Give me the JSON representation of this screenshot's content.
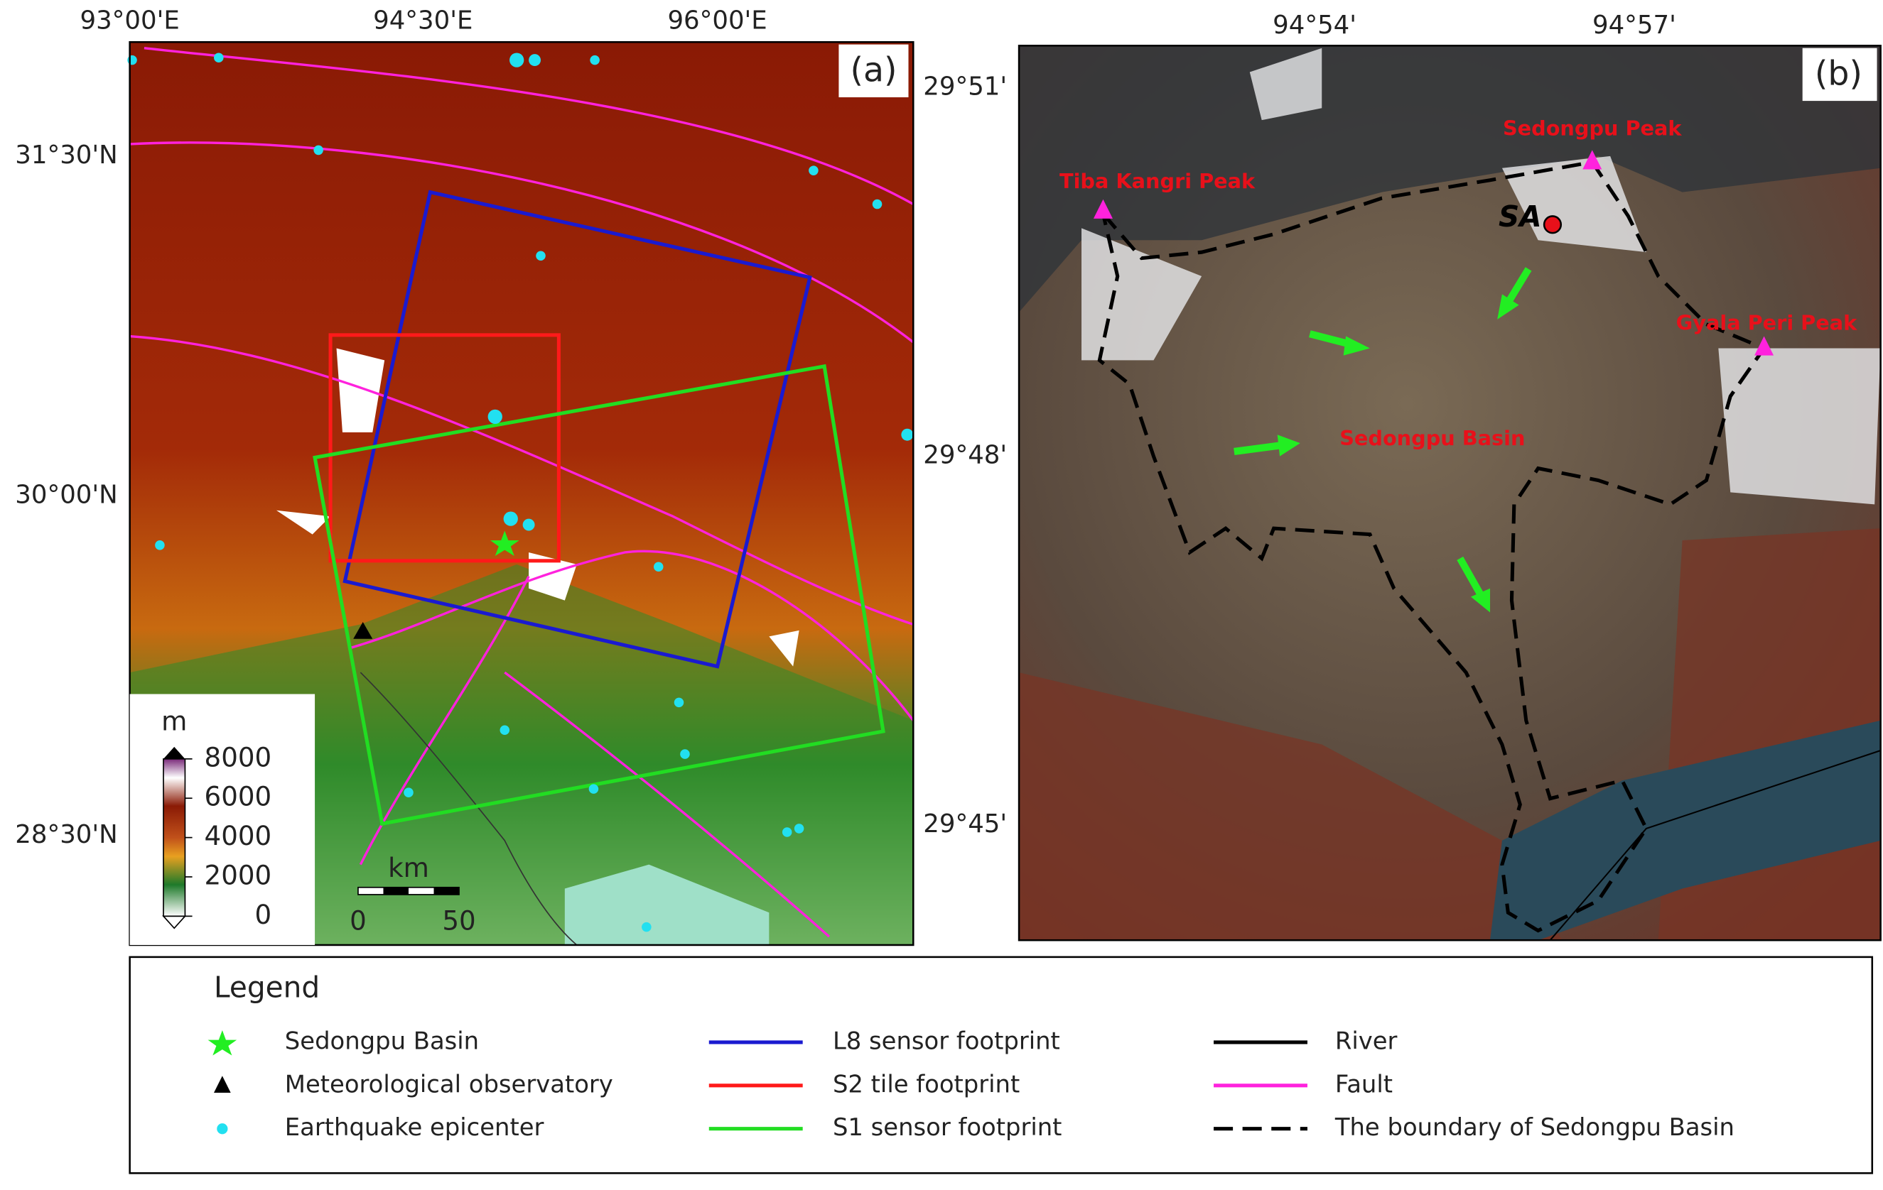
{
  "panel_a": {
    "label": "(a)",
    "x_ticks": [
      "93°00'E",
      "94°30'E",
      "96°00'E"
    ],
    "y_ticks": [
      "31°30'N",
      "30°00'N",
      "28°30'N"
    ],
    "colorbar": {
      "unit": "m",
      "ticks": [
        8000,
        6000,
        4000,
        2000,
        0
      ]
    },
    "scale_bar": {
      "unit": "km",
      "ticks": [
        0,
        50
      ]
    }
  },
  "panel_b": {
    "label": "(b)",
    "x_ticks": [
      "94°54'",
      "94°57'"
    ],
    "y_ticks": [
      "29°51'",
      "29°48'",
      "29°45'"
    ],
    "annotations": [
      "Tiba Kangri Peak",
      "Sedongpu Peak",
      "Gyala Peri Peak",
      "SA",
      "Sedongpu Basin"
    ]
  },
  "legend": {
    "title": "Legend",
    "items": [
      "Sedongpu Basin",
      "Meteorological observatory",
      "Earthquake epicenter",
      "L8 sensor footprint",
      "S2 tile footprint",
      "S1 sensor footprint",
      "River",
      "Fault",
      "The boundary of Sedongpu Basin"
    ]
  }
}
